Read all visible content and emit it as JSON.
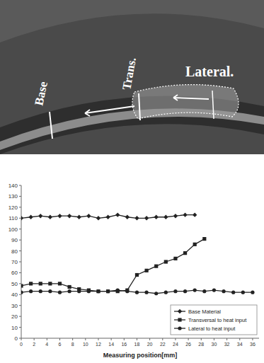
{
  "photo": {
    "labels": [
      "Base",
      "Trans.",
      "Lateral."
    ]
  },
  "chart_data": {
    "type": "line",
    "x_label": "Measuring position[mm]",
    "xlim": [
      0,
      37
    ],
    "xticks": [
      0,
      2,
      4,
      6,
      8,
      10,
      12,
      14,
      16,
      18,
      20,
      22,
      24,
      26,
      28,
      30,
      32,
      34,
      36
    ],
    "ylim": [
      0,
      140
    ],
    "yticks": [
      0,
      10,
      20,
      30,
      40,
      50,
      60,
      70,
      80,
      90,
      100,
      110,
      120,
      130,
      140
    ],
    "grid": false,
    "legend": "lower right",
    "series": [
      {
        "name": "Base Material",
        "color": "#222222",
        "marker": "diamond",
        "line_style": "solid",
        "x": [
          0,
          1.5,
          3,
          4.5,
          6,
          7.5,
          9,
          10.5,
          12,
          13.5,
          15,
          16.5,
          18,
          19.5,
          21,
          22.5,
          24,
          25.5,
          27
        ],
        "values": [
          110,
          111,
          112,
          111,
          112,
          112,
          111,
          112,
          110,
          111,
          113,
          111,
          110,
          110,
          111,
          111,
          112,
          113,
          113
        ]
      },
      {
        "name": "Transversal to heat input",
        "color": "#222222",
        "marker": "square",
        "line_style": "solid",
        "x": [
          0,
          1.5,
          3,
          4.5,
          6,
          7.5,
          9,
          10.5,
          12,
          13.5,
          15,
          16.5,
          18,
          19.5,
          21,
          22.5,
          24,
          25.5,
          27,
          28.5
        ],
        "values": [
          48,
          50,
          50,
          50,
          50,
          47,
          45,
          44,
          43,
          43,
          43,
          44,
          58,
          62,
          66,
          70,
          73,
          78,
          86,
          91
        ]
      },
      {
        "name": "Lateral to heat input",
        "color": "#222222",
        "marker": "circle",
        "line_style": "solid",
        "x": [
          0,
          1.5,
          3,
          4.5,
          6,
          7.5,
          9,
          10.5,
          12,
          13.5,
          15,
          16.5,
          18,
          19.5,
          21,
          22.5,
          24,
          25.5,
          27,
          28.5,
          30,
          31.5,
          33,
          34.5,
          36
        ],
        "values": [
          42,
          43,
          43,
          43,
          42,
          43,
          43,
          43,
          43,
          43,
          44,
          43,
          42,
          42,
          41,
          42,
          43,
          43,
          44,
          43,
          44,
          43,
          42,
          42,
          42
        ]
      }
    ]
  }
}
